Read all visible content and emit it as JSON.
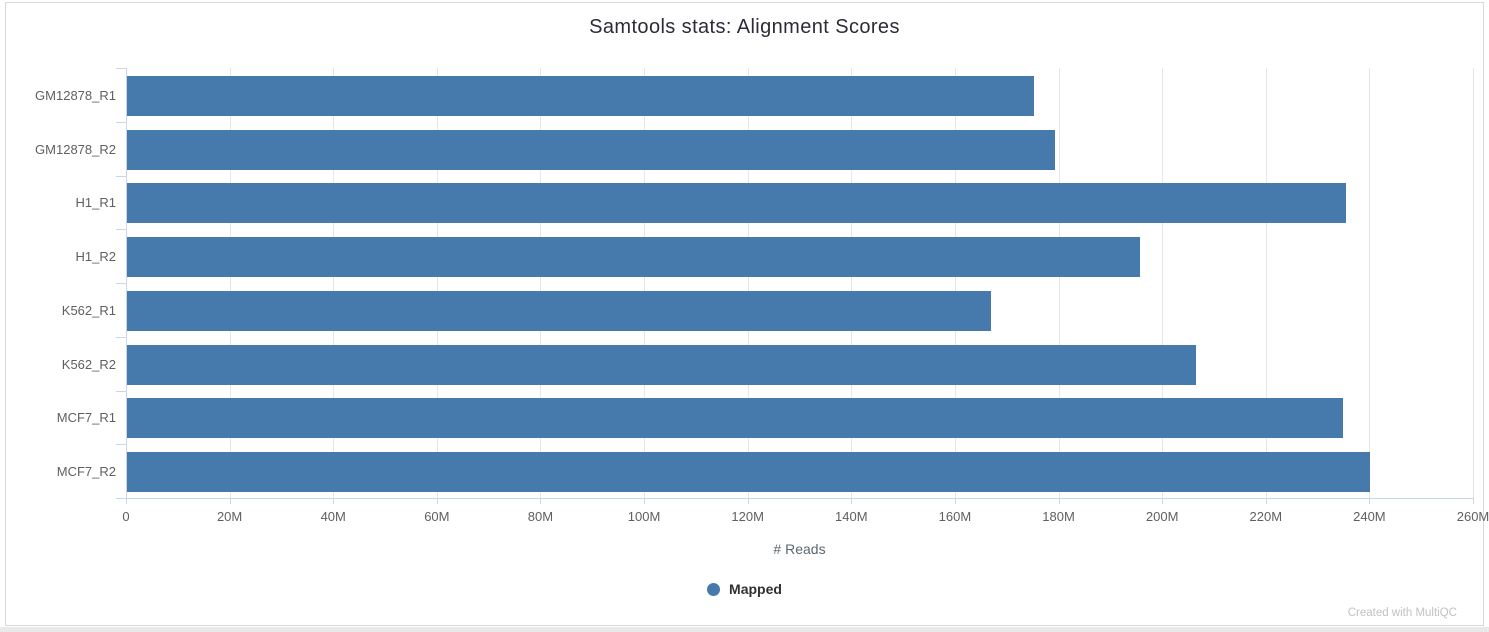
{
  "page": {
    "watermark": "Created with MultiQC"
  },
  "chart_data": {
    "type": "bar",
    "orientation": "horizontal",
    "title": "Samtools stats: Alignment Scores",
    "xlabel": "# Reads",
    "ylabel": "",
    "categories": [
      "GM12878_R1",
      "GM12878_R2",
      "H1_R1",
      "H1_R2",
      "K562_R1",
      "K562_R2",
      "MCF7_R1",
      "MCF7_R2"
    ],
    "series": [
      {
        "name": "Mapped",
        "color": "#4679ac",
        "values": [
          175100000,
          179200000,
          235200000,
          195600000,
          166700000,
          206400000,
          234700000,
          240000000
        ]
      }
    ],
    "xlim": [
      0,
      260000000
    ],
    "x_tick_step": 20000000,
    "x_tick_labels": [
      "0",
      "20M",
      "40M",
      "60M",
      "80M",
      "100M",
      "120M",
      "140M",
      "160M",
      "180M",
      "200M",
      "220M",
      "240M",
      "260M"
    ],
    "grid": true,
    "legend_position": "bottom-center",
    "colors": {
      "bar": "#4679ac",
      "grid_line": "#e6e6e6",
      "axis_line": "#ccd6eb",
      "tick_label": "#606060",
      "title": "#2c2c38",
      "legend_text": "#303030",
      "watermark": "#c2c2c2",
      "card_border": "#d9d9d9"
    }
  }
}
